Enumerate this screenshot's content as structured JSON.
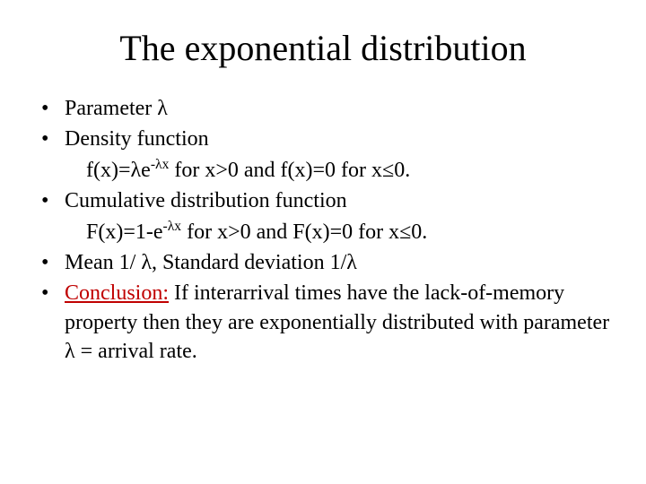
{
  "colors": {
    "background": "#ffffff",
    "text": "#000000",
    "accent": "#c00000"
  },
  "typography": {
    "title_fontsize": 40,
    "body_fontsize": 24,
    "font_family": "Times New Roman"
  },
  "title": "The exponential distribution",
  "bullets": {
    "b1": "Parameter λ",
    "b2": "Density function",
    "b2_sub_pre": "f(x)=λe",
    "b2_sub_sup": "-λx",
    "b2_sub_post": " for x>0 and f(x)=0 for x≤0.",
    "b3": "Cumulative distribution function",
    "b3_sub_pre": "F(x)=1-e",
    "b3_sub_sup": "-λx",
    "b3_sub_post": " for x>0 and F(x)=0 for x≤0.",
    "b4": "Mean 1/ λ,  Standard deviation 1/λ",
    "b5_label": "Conclusion:",
    "b5_rest": " If interarrival times have the lack-of-memory property then they are exponentially distributed with parameter λ = arrival rate."
  }
}
